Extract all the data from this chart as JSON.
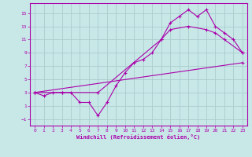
{
  "xlabel": "Windchill (Refroidissement éolien,°C)",
  "bg_color": "#c8e8e8",
  "grid_color": "#aacccc",
  "line_color": "#aa00aa",
  "xlim": [
    -0.5,
    23.5
  ],
  "ylim": [
    -2,
    16.5
  ],
  "xticks": [
    0,
    1,
    2,
    3,
    4,
    5,
    6,
    7,
    8,
    9,
    10,
    11,
    12,
    13,
    14,
    15,
    16,
    17,
    18,
    19,
    20,
    21,
    22,
    23
  ],
  "yticks": [
    -1,
    1,
    3,
    5,
    7,
    9,
    11,
    13,
    15
  ],
  "line1_x": [
    0,
    1,
    2,
    3,
    4,
    5,
    6,
    7,
    8,
    9,
    10,
    11,
    12,
    13,
    14,
    15,
    16,
    17,
    18,
    19,
    20,
    21,
    22,
    23
  ],
  "line1_y": [
    3,
    2.5,
    3,
    3,
    3,
    1.5,
    1.5,
    -0.5,
    1.5,
    4,
    6,
    7.5,
    8,
    9,
    11,
    13.5,
    14.5,
    15.5,
    14.5,
    15.5,
    13,
    12,
    11,
    9
  ],
  "line2_x": [
    0,
    3,
    7,
    14,
    15,
    17,
    19,
    20,
    21,
    23
  ],
  "line2_y": [
    3,
    3,
    3,
    11,
    12.5,
    13,
    12.5,
    12,
    11,
    9
  ],
  "line3_x": [
    0,
    23
  ],
  "line3_y": [
    3,
    7.5
  ]
}
